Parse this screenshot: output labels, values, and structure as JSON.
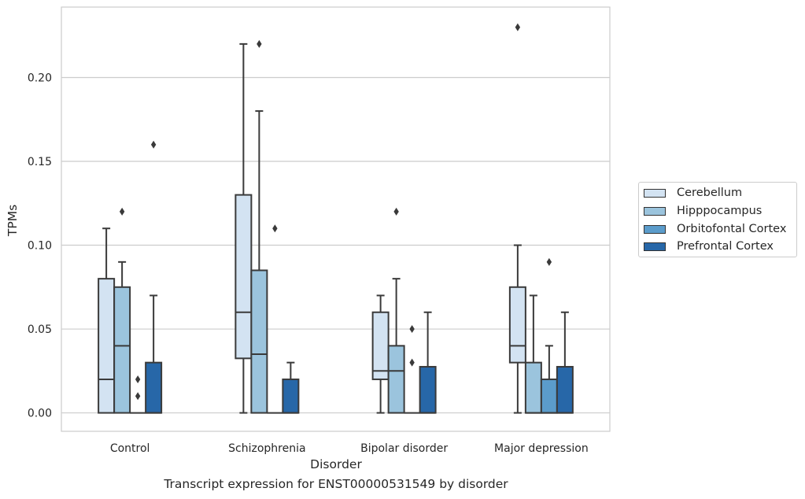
{
  "caption": "Transcript expression for ENST00000531549 by disorder",
  "colors": {
    "Cerebellum": "#d3e3f2",
    "Hipppocampus": "#9bc4dd",
    "Orbitofontal Cortex": "#5b9ccb",
    "Prefrontal Cortex": "#2767a8"
  },
  "chart_data": {
    "type": "box",
    "xlabel": "Disorder",
    "ylabel": "TPMs",
    "ylim": [
      -0.011,
      0.242
    ],
    "yticks": [
      "0.00",
      "0.05",
      "0.10",
      "0.15",
      "0.20"
    ],
    "grid": "horizontal",
    "legend": "right, outside plot",
    "categories": [
      "Control",
      "Schizophrenia",
      "Bipolar disorder",
      "Major depression"
    ],
    "series": [
      {
        "name": "Cerebellum",
        "boxes": [
          {
            "whislo": 0.0,
            "q1": 0.0,
            "med": 0.02,
            "q3": 0.08,
            "whishi": 0.11,
            "fliers": []
          },
          {
            "whislo": 0.0,
            "q1": 0.0325,
            "med": 0.06,
            "q3": 0.13,
            "whishi": 0.22,
            "fliers": []
          },
          {
            "whislo": 0.0,
            "q1": 0.02,
            "med": 0.025,
            "q3": 0.06,
            "whishi": 0.07,
            "fliers": []
          },
          {
            "whislo": 0.0,
            "q1": 0.03,
            "med": 0.04,
            "q3": 0.075,
            "whishi": 0.1,
            "fliers": [
              0.23
            ]
          }
        ]
      },
      {
        "name": "Hipppocampus",
        "boxes": [
          {
            "whislo": 0.0,
            "q1": 0.0,
            "med": 0.04,
            "q3": 0.075,
            "whishi": 0.09,
            "fliers": [
              0.12
            ]
          },
          {
            "whislo": 0.0,
            "q1": 0.0,
            "med": 0.035,
            "q3": 0.085,
            "whishi": 0.18,
            "fliers": [
              0.22
            ]
          },
          {
            "whislo": 0.0,
            "q1": 0.0,
            "med": 0.025,
            "q3": 0.04,
            "whishi": 0.08,
            "fliers": [
              0.12
            ]
          },
          {
            "whislo": 0.0,
            "q1": 0.0,
            "med": 0.0,
            "q3": 0.03,
            "whishi": 0.07,
            "fliers": []
          }
        ]
      },
      {
        "name": "Orbitofontal Cortex",
        "boxes": [
          {
            "whislo": 0.0,
            "q1": 0.0,
            "med": 0.0,
            "q3": 0.0,
            "whishi": 0.0,
            "fliers": [
              0.01,
              0.02
            ]
          },
          {
            "whislo": 0.0,
            "q1": 0.0,
            "med": 0.0,
            "q3": 0.0,
            "whishi": 0.0,
            "fliers": [
              0.11
            ]
          },
          {
            "whislo": 0.0,
            "q1": 0.0,
            "med": 0.0,
            "q3": 0.0,
            "whishi": 0.0,
            "fliers": [
              0.03,
              0.05
            ]
          },
          {
            "whislo": 0.0,
            "q1": 0.0,
            "med": 0.0,
            "q3": 0.02,
            "whishi": 0.04,
            "fliers": [
              0.09
            ]
          }
        ]
      },
      {
        "name": "Prefrontal Cortex",
        "boxes": [
          {
            "whislo": 0.0,
            "q1": 0.0,
            "med": 0.0,
            "q3": 0.03,
            "whishi": 0.07,
            "fliers": [
              0.16
            ]
          },
          {
            "whislo": 0.0,
            "q1": 0.0,
            "med": 0.0,
            "q3": 0.02,
            "whishi": 0.03,
            "fliers": []
          },
          {
            "whislo": 0.0,
            "q1": 0.0,
            "med": 0.0,
            "q3": 0.0275,
            "whishi": 0.06,
            "fliers": []
          },
          {
            "whislo": 0.0,
            "q1": 0.0,
            "med": 0.0,
            "q3": 0.0275,
            "whishi": 0.06,
            "fliers": []
          }
        ]
      }
    ]
  }
}
